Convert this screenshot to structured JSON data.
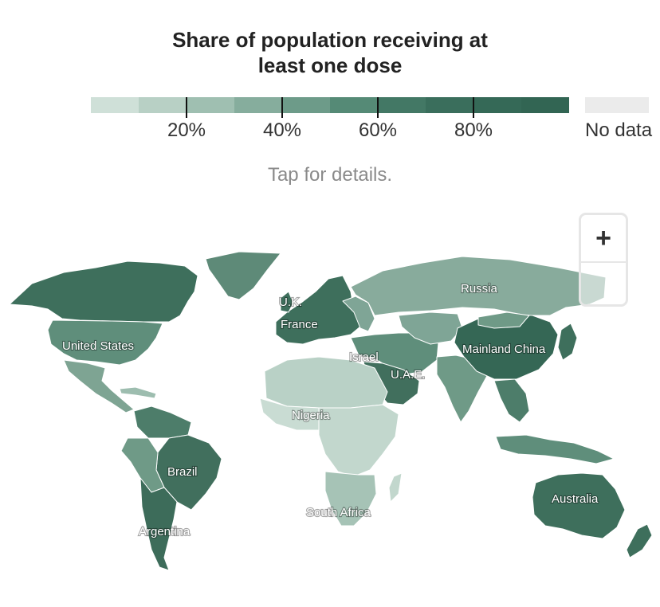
{
  "title": {
    "line1": "Share of population receiving at",
    "line2": "least one dose"
  },
  "legend": {
    "colors": [
      "#cfe0d8",
      "#b8d0c5",
      "#9fbfb1",
      "#86ad9d",
      "#6d9b89",
      "#558a76",
      "#437865",
      "#3a6e5c",
      "#356957",
      "#326553"
    ],
    "ticks": [
      "20%",
      "40%",
      "60%",
      "80%"
    ],
    "no_data_label": "No data",
    "no_data_color": "#ebebeb"
  },
  "hint": "Tap for details.",
  "zoom": {
    "in_icon": "+",
    "out_icon": "minus-icon"
  },
  "map": {
    "ocean_color": "#ffffff",
    "border_color": "#ffffff",
    "labels": {
      "us": "United States",
      "russia": "Russia",
      "uk": "U.K.",
      "france": "France",
      "israel": "Israel",
      "uae": "U.A.E.",
      "china": "Mainland China",
      "nigeria": "Nigeria",
      "brazil": "Brazil",
      "argentina": "Argentina",
      "south_africa": "South Africa",
      "australia": "Australia"
    }
  }
}
